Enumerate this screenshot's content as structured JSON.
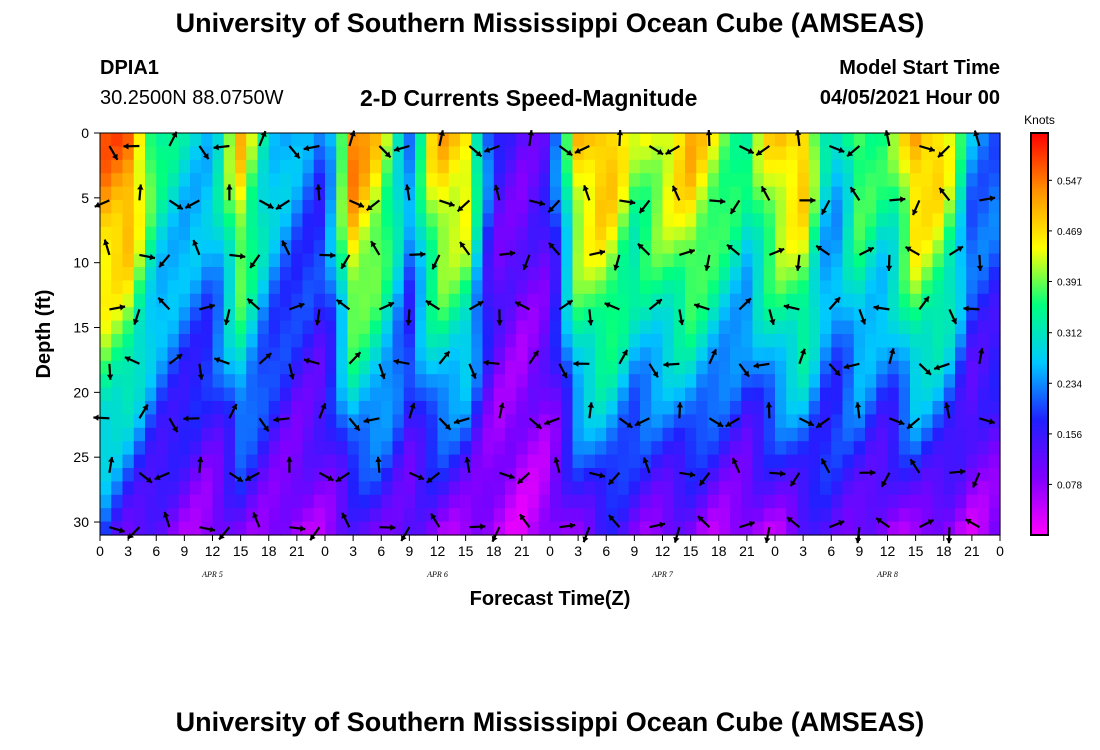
{
  "header": {
    "title": "University of Southern Mississippi Ocean Cube (AMSEAS)",
    "station_id": "DPIA1",
    "station_coords": "30.2500N  88.0750W",
    "chart_title": "2-D Currents Speed-Magnitude",
    "model_start_label": "Model Start Time",
    "model_start_value": "04/05/2021 Hour 00"
  },
  "footer": {
    "title": "University of Southern Mississippi Ocean Cube (AMSEAS)"
  },
  "chart_data": {
    "type": "heatmap",
    "title": "2-D Currents Speed-Magnitude",
    "xlabel": "Forecast Time(Z)",
    "ylabel": "Depth (ft)",
    "x_range_hours": [
      0,
      96
    ],
    "x_tick_labels": [
      "0",
      "3",
      "6",
      "9",
      "12",
      "15",
      "18",
      "21",
      "0",
      "3",
      "6",
      "9",
      "12",
      "15",
      "18",
      "21",
      "0",
      "3",
      "6",
      "9",
      "12",
      "15",
      "18",
      "21",
      "0",
      "3",
      "6",
      "9",
      "12",
      "15",
      "18",
      "21",
      "0"
    ],
    "date_labels": [
      {
        "hour": 12,
        "label": "APR 5"
      },
      {
        "hour": 36,
        "label": "APR 6"
      },
      {
        "hour": 60,
        "label": "APR 7"
      },
      {
        "hour": 84,
        "label": "APR 8"
      }
    ],
    "ylim": [
      0,
      31
    ],
    "y_ticks": [
      0,
      5,
      10,
      15,
      20,
      25,
      30
    ],
    "colorbar": {
      "unit": "Knots",
      "ticks": [
        "0.547",
        "0.469",
        "0.391",
        "0.312",
        "0.234",
        "0.156",
        "0.078"
      ],
      "tick_values": [
        0.547,
        0.469,
        0.391,
        0.312,
        0.234,
        0.156,
        0.078
      ],
      "range": [
        0.0,
        0.62
      ],
      "colors": [
        "#ff00ff",
        "#8000ff",
        "#2020ff",
        "#00c8ff",
        "#00ff80",
        "#ffff00",
        "#ff9000",
        "#ff0000"
      ]
    },
    "speed_profile": {
      "hours": [
        0,
        3,
        6,
        9,
        12,
        15,
        18,
        21,
        24,
        27,
        30,
        33,
        36,
        39,
        42,
        45,
        48,
        51,
        54,
        57,
        60,
        63,
        66,
        69,
        72,
        75,
        78,
        81,
        84,
        87,
        90,
        93,
        96
      ],
      "surface_knots": [
        0.55,
        0.56,
        0.35,
        0.3,
        0.28,
        0.48,
        0.3,
        0.25,
        0.2,
        0.55,
        0.45,
        0.25,
        0.5,
        0.48,
        0.15,
        0.12,
        0.15,
        0.48,
        0.52,
        0.4,
        0.45,
        0.5,
        0.42,
        0.35,
        0.48,
        0.5,
        0.25,
        0.4,
        0.35,
        0.52,
        0.48,
        0.25,
        0.22
      ],
      "bottom_knots": [
        0.2,
        0.12,
        0.1,
        0.08,
        0.06,
        0.1,
        0.08,
        0.05,
        0.08,
        0.1,
        0.12,
        0.1,
        0.08,
        0.06,
        0.05,
        0.04,
        0.05,
        0.1,
        0.14,
        0.1,
        0.08,
        0.08,
        0.06,
        0.05,
        0.06,
        0.1,
        0.14,
        0.1,
        0.06,
        0.08,
        0.06,
        0.05,
        0.08
      ]
    },
    "vectors_note": "black arrows show current direction at each time/depth"
  }
}
